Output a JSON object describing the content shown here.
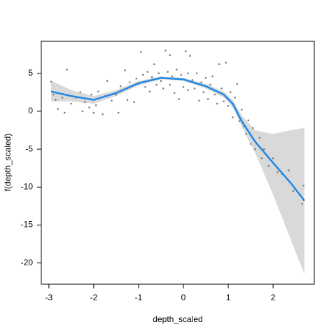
{
  "chart_data": {
    "type": "scatter-smooth",
    "x_label": "depth_scaled",
    "y_label": "f(depth_scaled)",
    "xlim": [
      -3.17,
      2.92
    ],
    "ylim": [
      -22.8,
      9.22
    ],
    "xticks": [
      -3,
      -2,
      -1,
      0,
      1,
      2
    ],
    "yticks": [
      -20,
      -15,
      -10,
      -5,
      0,
      5
    ],
    "points": {
      "color": "#7f7f7f",
      "x": [
        -2.95,
        -2.9,
        -2.85,
        -2.8,
        -2.7,
        -2.65,
        -2.6,
        -2.5,
        -2.4,
        -2.3,
        -2.25,
        -2.2,
        -2.1,
        -2.05,
        -2.0,
        -1.95,
        -1.9,
        -1.8,
        -1.75,
        -1.7,
        -1.6,
        -1.5,
        -1.45,
        -1.4,
        -1.3,
        -1.25,
        -1.2,
        -1.1,
        -1.05,
        -1.0,
        -0.95,
        -0.9,
        -0.85,
        -0.8,
        -0.75,
        -0.7,
        -0.65,
        -0.6,
        -0.55,
        -0.5,
        -0.45,
        -0.4,
        -0.35,
        -0.3,
        -0.3,
        -0.25,
        -0.2,
        -0.15,
        -0.1,
        -0.05,
        0,
        0.05,
        0.1,
        0.1,
        0.15,
        0.2,
        0.25,
        0.3,
        0.35,
        0.4,
        0.45,
        0.5,
        0.55,
        0.6,
        0.65,
        0.7,
        0.75,
        0.8,
        0.85,
        0.9,
        0.95,
        1.0,
        1.05,
        1.1,
        1.15,
        1.2,
        1.25,
        1.3,
        1.35,
        1.4,
        1.45,
        1.5,
        1.55,
        1.6,
        1.7,
        1.75,
        1.8,
        1.9,
        2.0,
        2.1,
        2.2,
        2.35,
        2.45,
        2.6,
        2.65,
        2.68
      ],
      "values": [
        3.9,
        2.2,
        1.5,
        0.3,
        1.8,
        -0.2,
        5.5,
        1.0,
        1.8,
        2.5,
        0.0,
        1.2,
        0.5,
        2.2,
        -0.2,
        0.8,
        2.6,
        -0.4,
        2.0,
        4.0,
        1.4,
        2.2,
        -0.2,
        3.3,
        5.4,
        1.5,
        3.8,
        1.2,
        4.3,
        3.6,
        7.8,
        4.8,
        3.2,
        5.2,
        2.6,
        4.5,
        6.2,
        3.5,
        5.0,
        4.0,
        3.0,
        8.0,
        5.2,
        7.4,
        3.5,
        4.6,
        2.4,
        5.5,
        1.6,
        4.8,
        3.2,
        7.9,
        5.0,
        2.8,
        7.3,
        4.1,
        3.0,
        5.0,
        1.4,
        3.8,
        2.5,
        4.4,
        1.6,
        3.5,
        4.6,
        2.2,
        1.0,
        6.2,
        3.0,
        1.3,
        6.4,
        0.7,
        2.5,
        -0.8,
        1.8,
        3.6,
        -1.3,
        0.2,
        -2.0,
        -3.0,
        -1.2,
        -4.3,
        -2.2,
        -5.0,
        -3.5,
        -6.2,
        -5.0,
        -7.2,
        -6.2,
        -8.0,
        -8.3,
        -7.8,
        -10.5,
        -11.0,
        -12.2,
        -9.8
      ]
    },
    "smooth": {
      "color": "#1e88e5",
      "band_color": "#d9d9d9",
      "x": [
        -2.95,
        -2.5,
        -2.0,
        -1.5,
        -1.0,
        -0.5,
        0,
        0.5,
        0.9,
        1.1,
        1.3,
        1.6,
        2.0,
        2.4,
        2.7
      ],
      "values": [
        2.6,
        2.0,
        1.5,
        2.4,
        3.7,
        4.4,
        4.2,
        3.3,
        2.2,
        1.0,
        -1.3,
        -4.0,
        -6.8,
        -9.5,
        -11.8
      ],
      "lower": [
        1.3,
        1.3,
        1.0,
        2.0,
        3.4,
        4.2,
        4.0,
        3.0,
        1.8,
        0.5,
        -2.0,
        -5.5,
        -11,
        -17,
        -21.5
      ],
      "upper": [
        4.0,
        2.8,
        2.0,
        2.8,
        4.0,
        4.6,
        4.4,
        3.6,
        2.6,
        1.5,
        -0.5,
        -2.5,
        -3.0,
        -2.5,
        -2.2
      ]
    }
  }
}
